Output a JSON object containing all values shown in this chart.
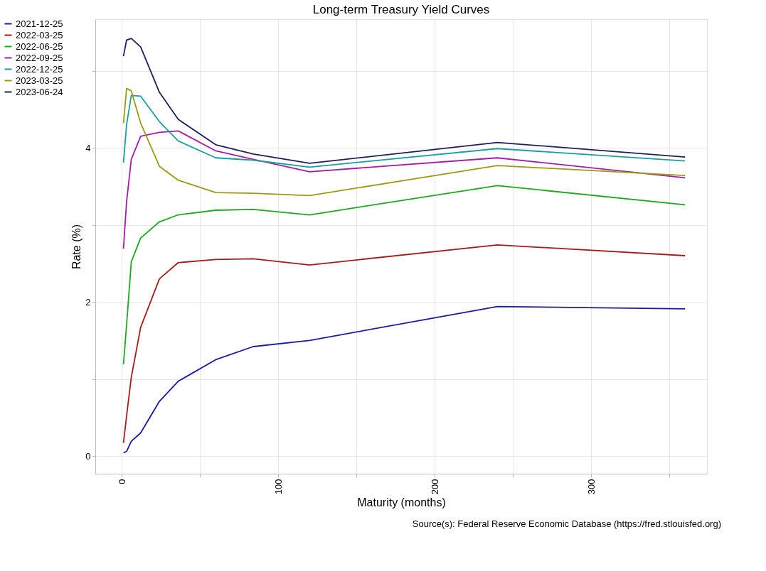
{
  "chart_data": {
    "type": "line",
    "title": "Long-term Treasury Yield Curves",
    "xlabel": "Maturity (months)",
    "ylabel": "Rate (%)",
    "annotations": [
      "Source(s): Federal Reserve Economic Database (https://fred.stlouisfed.org)"
    ],
    "x": [
      1,
      3,
      6,
      12,
      24,
      36,
      60,
      84,
      120,
      240,
      360
    ],
    "series": [
      {
        "name": "2021-12-25",
        "color": "#1a1aa6",
        "values": [
          0.04,
          0.06,
          0.19,
          0.3,
          0.71,
          0.97,
          1.25,
          1.42,
          1.5,
          1.94,
          1.91
        ]
      },
      {
        "name": "2022-03-25",
        "color": "#a61c1c",
        "values": [
          0.17,
          0.52,
          1.02,
          1.67,
          2.3,
          2.51,
          2.55,
          2.56,
          2.48,
          2.74,
          2.6
        ]
      },
      {
        "name": "2022-06-25",
        "color": "#1ea81e",
        "values": [
          1.19,
          1.7,
          2.52,
          2.83,
          3.04,
          3.13,
          3.19,
          3.2,
          3.13,
          3.51,
          3.26
        ]
      },
      {
        "name": "2022-09-25",
        "color": "#a61ca6",
        "values": [
          2.69,
          3.3,
          3.85,
          4.15,
          4.2,
          4.22,
          3.96,
          3.85,
          3.69,
          3.87,
          3.61
        ]
      },
      {
        "name": "2022-12-25",
        "color": "#1a9e9e",
        "values": [
          3.81,
          4.3,
          4.68,
          4.67,
          4.34,
          4.09,
          3.87,
          3.84,
          3.75,
          3.99,
          3.83
        ]
      },
      {
        "name": "2023-03-25",
        "color": "#9a9a14",
        "values": [
          4.32,
          4.77,
          4.74,
          4.32,
          3.76,
          3.58,
          3.42,
          3.41,
          3.38,
          3.77,
          3.64
        ]
      },
      {
        "name": "2023-06-24",
        "color": "#1f1f5c",
        "values": [
          5.19,
          5.4,
          5.42,
          5.31,
          4.72,
          4.37,
          4.04,
          3.92,
          3.8,
          4.07,
          3.88
        ]
      }
    ],
    "xlim": [
      -17,
      374
    ],
    "ylim": [
      -0.23,
      5.67
    ],
    "xticks": [
      0,
      {
        "value": 50,
        "label": null
      },
      100,
      {
        "value": 150,
        "label": null
      },
      200,
      {
        "value": 250,
        "label": null
      },
      300,
      {
        "value": 350,
        "label": null
      }
    ],
    "yticks": [
      0,
      {
        "value": 1,
        "label": null
      },
      2,
      {
        "value": 3,
        "label": null
      },
      4,
      {
        "value": 5,
        "label": null
      }
    ],
    "grid": true,
    "legend": "top left",
    "marker": "none",
    "line_style": "solid"
  }
}
